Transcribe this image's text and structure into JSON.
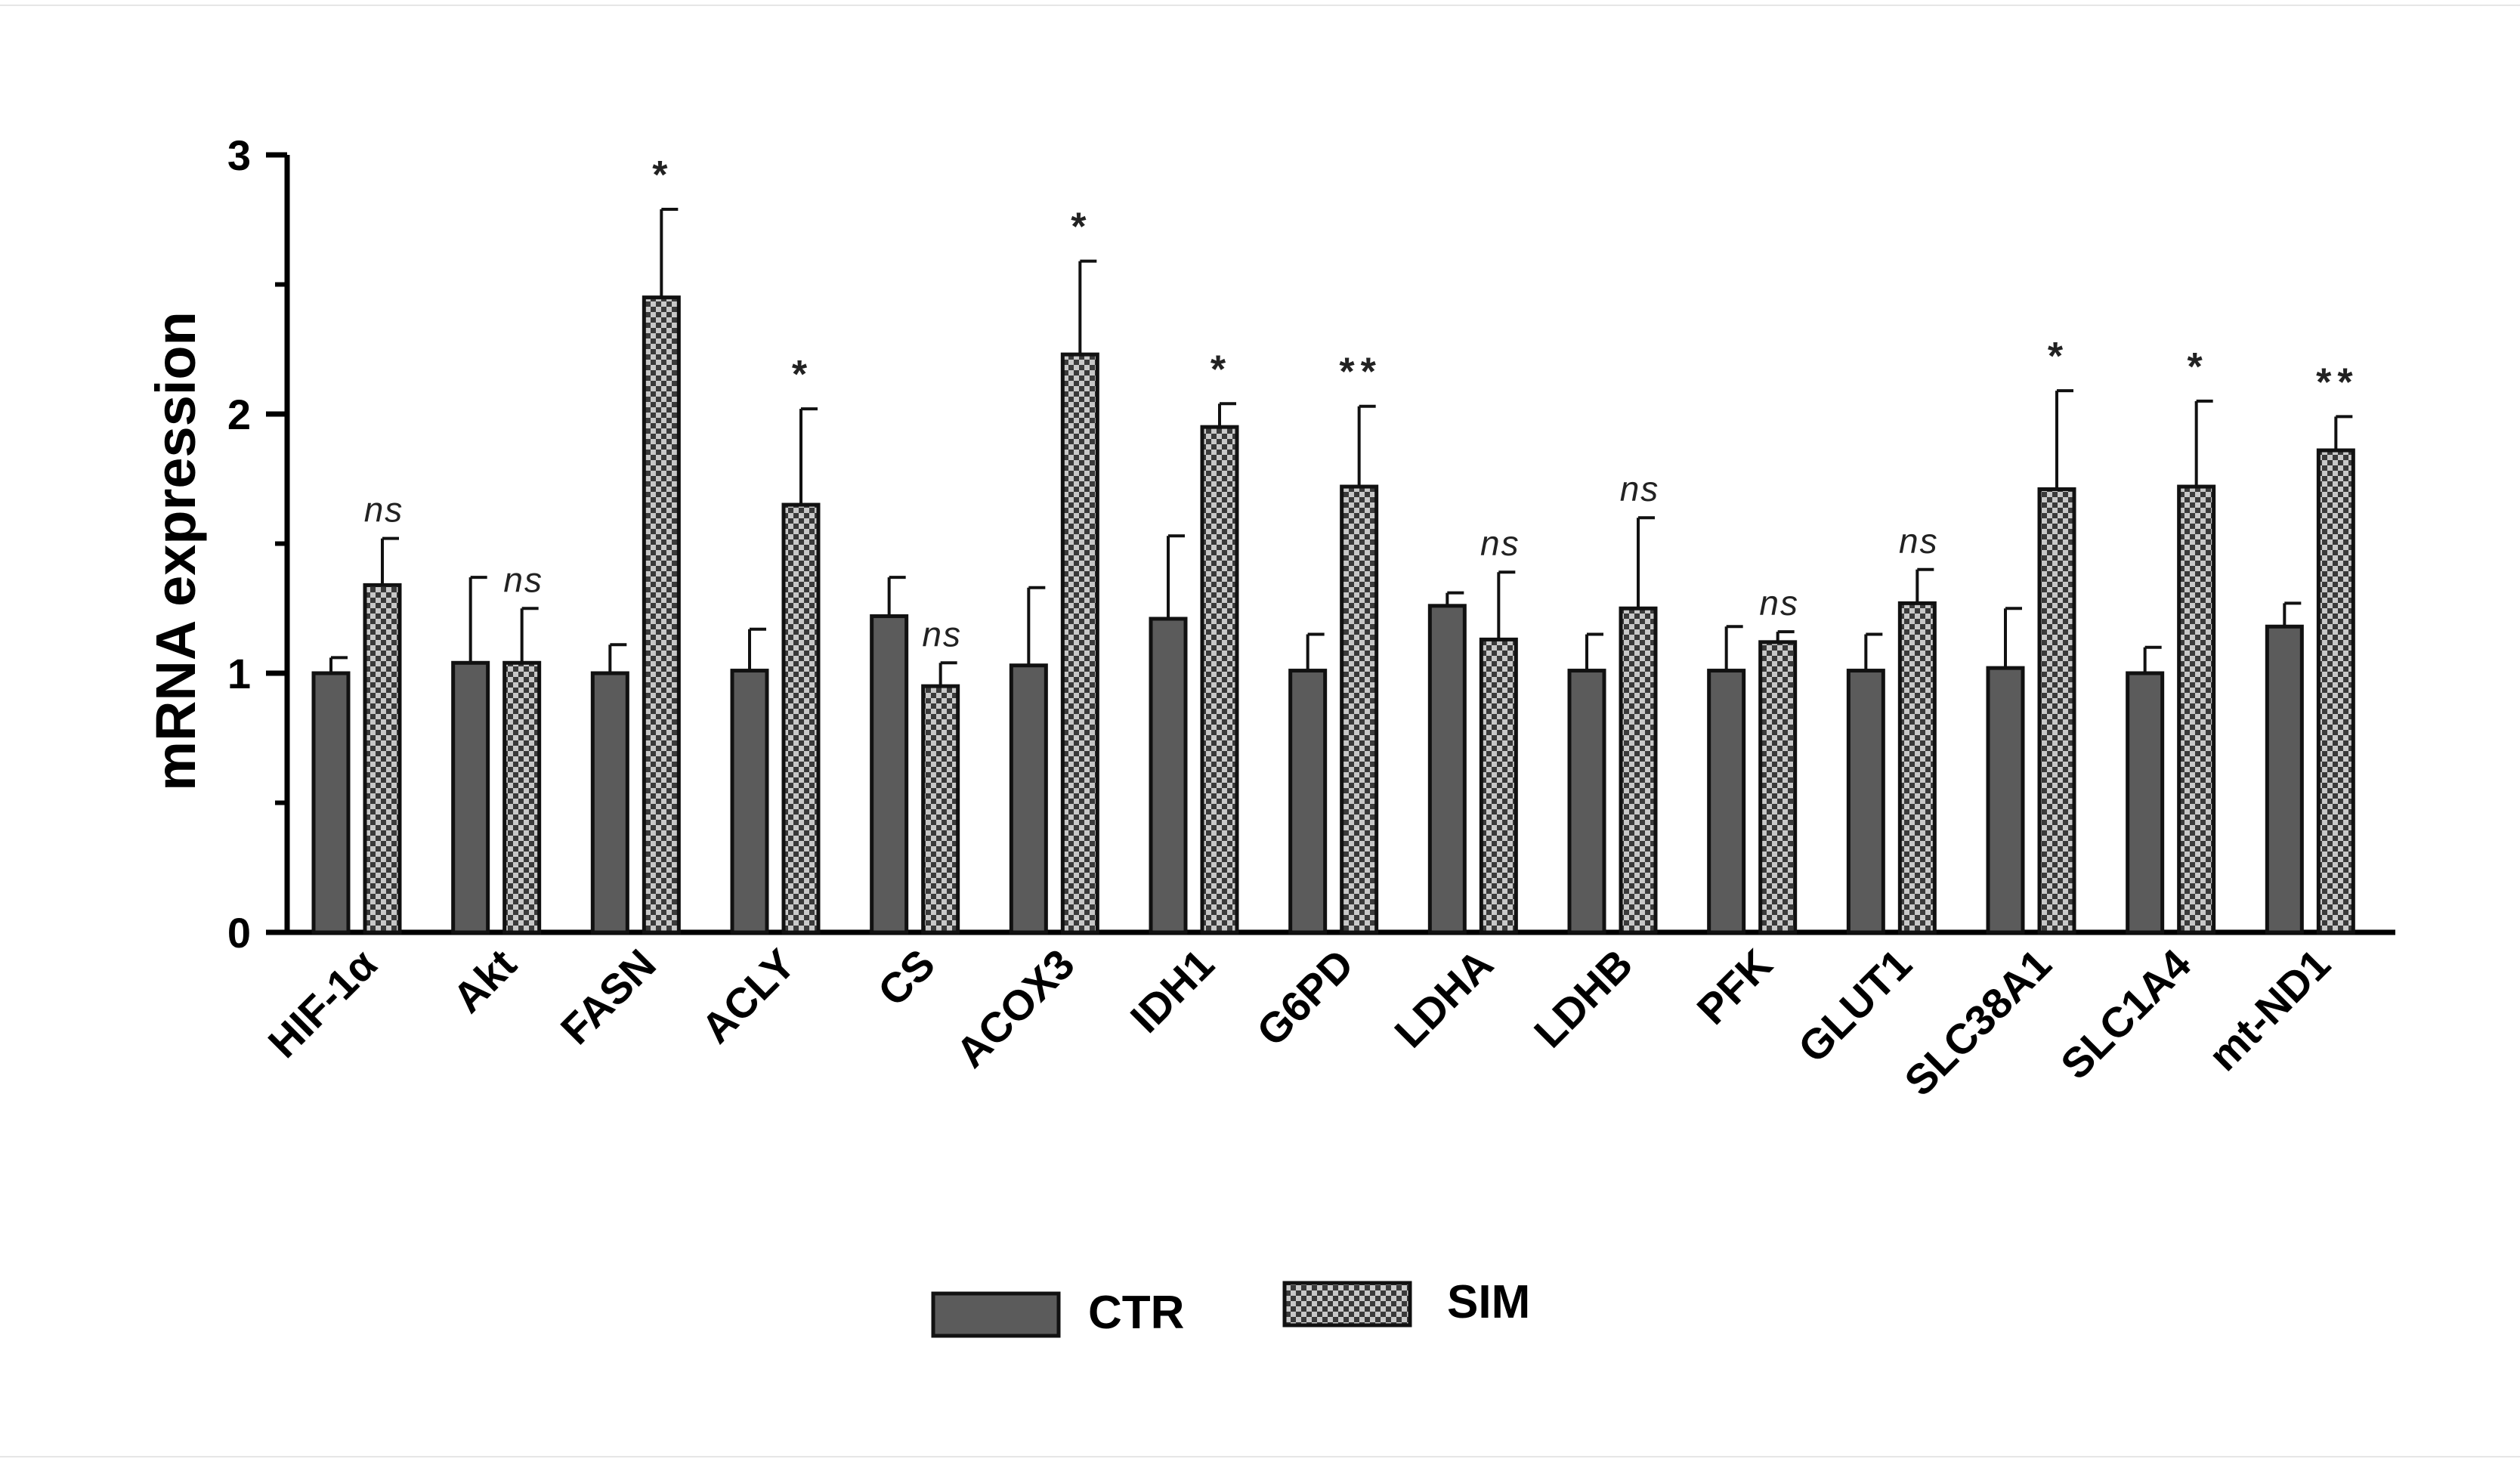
{
  "chart_data": {
    "type": "bar",
    "ylabel": "mRNA expression",
    "xlabel": "",
    "ylim": [
      0,
      3
    ],
    "yticks": [
      0,
      1,
      2,
      3
    ],
    "categories": [
      "HIF-1α",
      "Akt",
      "FASN",
      "ACLY",
      "CS",
      "ACOX3",
      "IDH1",
      "G6PD",
      "LDHA",
      "LDHB",
      "PFK",
      "GLUT1",
      "SLC38A1",
      "SLC1A4",
      "mt-ND1"
    ],
    "series": [
      {
        "name": "CTR",
        "pattern": "solid",
        "color": "#5b5b5b",
        "values": [
          1.0,
          1.04,
          1.0,
          1.01,
          1.22,
          1.03,
          1.21,
          1.01,
          1.26,
          1.01,
          1.01,
          1.01,
          1.02,
          1.0,
          1.18
        ],
        "errors": [
          0.06,
          0.33,
          0.11,
          0.16,
          0.15,
          0.3,
          0.32,
          0.14,
          0.05,
          0.14,
          0.17,
          0.14,
          0.23,
          0.1,
          0.09
        ]
      },
      {
        "name": "SIM",
        "pattern": "checker",
        "color": "#4a4a4a",
        "values": [
          1.34,
          1.04,
          2.45,
          1.65,
          0.95,
          2.23,
          1.95,
          1.72,
          1.13,
          1.25,
          1.12,
          1.27,
          1.71,
          1.72,
          1.86
        ],
        "errors": [
          0.18,
          0.21,
          0.34,
          0.37,
          0.09,
          0.36,
          0.09,
          0.31,
          0.26,
          0.35,
          0.04,
          0.13,
          0.38,
          0.33,
          0.13
        ]
      }
    ],
    "annotations": [
      "ns",
      "ns",
      "*",
      "*",
      "ns",
      "*",
      "*",
      "**",
      "ns",
      "ns",
      "ns",
      "ns",
      "*",
      "*",
      "**"
    ],
    "legend_position": "bottom",
    "grid": false
  }
}
